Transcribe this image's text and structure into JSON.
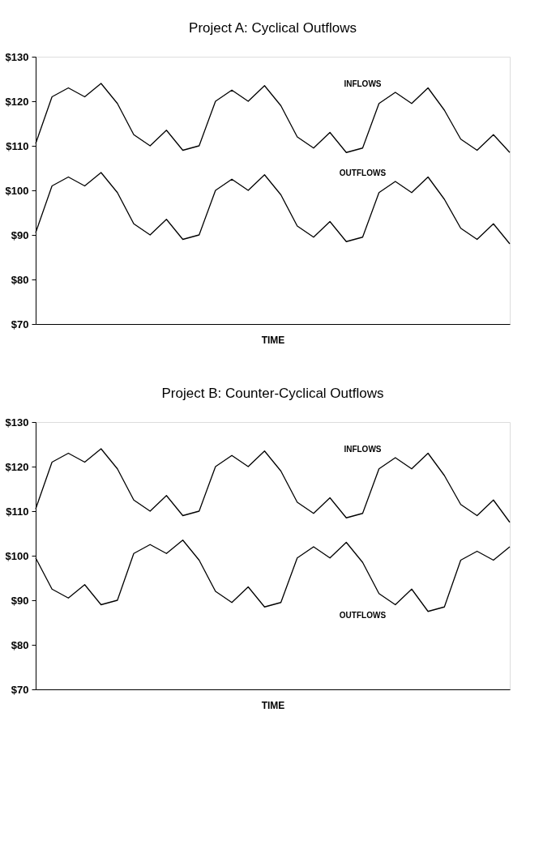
{
  "chart_data": [
    {
      "type": "line",
      "title": "Project A:  Cyclical Outflows",
      "xlabel": "TIME",
      "categories": [
        null,
        null,
        null,
        null,
        null,
        null,
        null,
        null,
        null,
        null,
        null,
        null,
        null,
        null,
        null,
        null,
        null,
        null,
        null,
        null,
        null,
        null,
        null,
        null,
        null,
        null,
        null,
        null,
        null,
        null
      ],
      "series": [
        {
          "name": "INFLOWS",
          "color": "#000000",
          "values": [
            110.5,
            121,
            123,
            121,
            124,
            119.5,
            112.5,
            110,
            113.5,
            109,
            110,
            120,
            122.5,
            120,
            123.5,
            119,
            112,
            109.5,
            113,
            108.5,
            109.5,
            119.5,
            122,
            119.5,
            123,
            118,
            111.5,
            109,
            112.5,
            108.5
          ]
        },
        {
          "name": "OUTFLOWS",
          "color": "#000000",
          "values": [
            90.5,
            101,
            103,
            101,
            104,
            99.5,
            92.5,
            90,
            93.5,
            89,
            90,
            100,
            102.5,
            100,
            103.5,
            99,
            92,
            89.5,
            93,
            88.5,
            89.5,
            99.5,
            102,
            99.5,
            103,
            98,
            91.5,
            89,
            92.5,
            88
          ]
        }
      ],
      "ylim": [
        70,
        130
      ],
      "yticks": [
        {
          "value": 70,
          "label": "$70"
        },
        {
          "value": 80,
          "label": "$80"
        },
        {
          "value": 90,
          "label": "$90"
        },
        {
          "value": 100,
          "label": "$100"
        },
        {
          "value": 110,
          "label": "$110"
        },
        {
          "value": 120,
          "label": "$120"
        },
        {
          "value": 130,
          "label": "$130"
        }
      ],
      "tick_labels": "y",
      "grid": false,
      "marker": "none",
      "line_style": "solid"
    },
    {
      "type": "line",
      "title": "Project B:  Counter-Cyclical Outflows",
      "xlabel": "TIME",
      "categories": [
        null,
        null,
        null,
        null,
        null,
        null,
        null,
        null,
        null,
        null,
        null,
        null,
        null,
        null,
        null,
        null,
        null,
        null,
        null,
        null,
        null,
        null,
        null,
        null,
        null,
        null,
        null,
        null,
        null,
        null
      ],
      "series": [
        {
          "name": "INFLOWS",
          "color": "#000000",
          "values": [
            110.5,
            121,
            123,
            121,
            124,
            119.5,
            112.5,
            110,
            113.5,
            109,
            110,
            120,
            122.5,
            120,
            123.5,
            119,
            112,
            109.5,
            113,
            108.5,
            109.5,
            119.5,
            122,
            119.5,
            123,
            118,
            111.5,
            109,
            112.5,
            107.5
          ]
        },
        {
          "name": "OUTFLOWS",
          "color": "#000000",
          "values": [
            99.5,
            92.5,
            90.5,
            93.5,
            89,
            90,
            100.5,
            102.5,
            100.5,
            103.5,
            99,
            92,
            89.5,
            93,
            88.5,
            89.5,
            99.5,
            102,
            99.5,
            103,
            98.5,
            91.5,
            89,
            92.5,
            87.5,
            88.5,
            99,
            101,
            99,
            102
          ]
        }
      ],
      "ylim": [
        70,
        130
      ],
      "yticks": [
        {
          "value": 70,
          "label": "$70"
        },
        {
          "value": 80,
          "label": "$80"
        },
        {
          "value": 90,
          "label": "$90"
        },
        {
          "value": 100,
          "label": "$100"
        },
        {
          "value": 110,
          "label": "$110"
        },
        {
          "value": 120,
          "label": "$120"
        },
        {
          "value": 130,
          "label": "$130"
        }
      ],
      "tick_labels": "y",
      "grid": false,
      "marker": "none",
      "line_style": "solid"
    }
  ]
}
